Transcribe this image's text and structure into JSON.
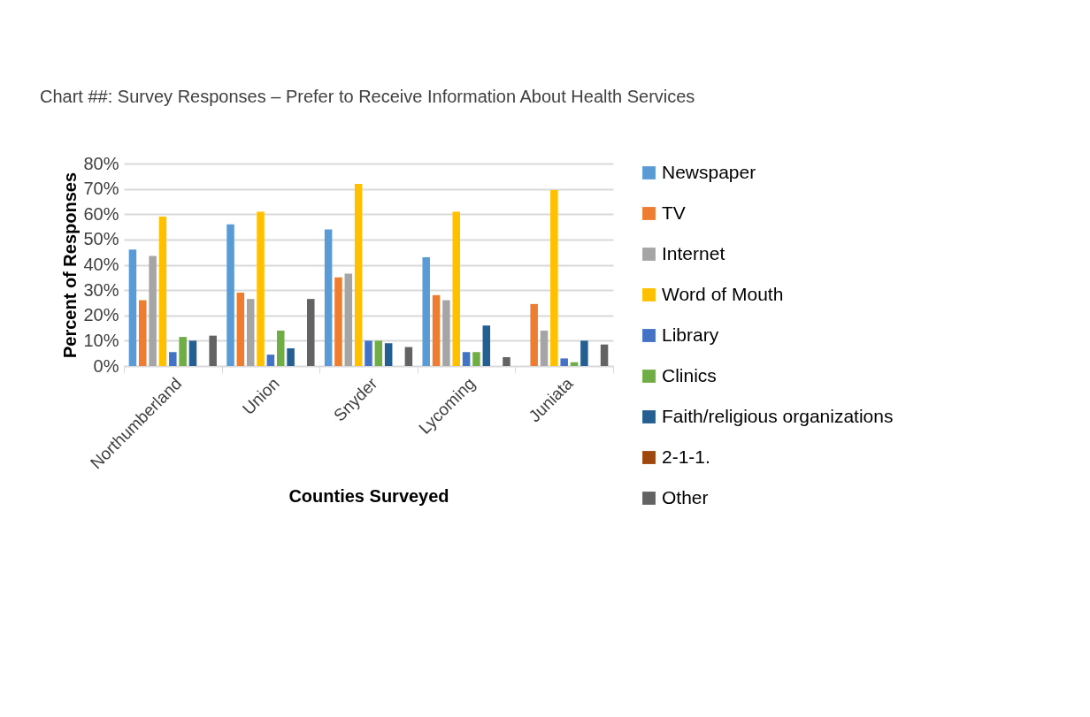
{
  "chart_data": {
    "type": "bar",
    "title": "Chart ##: Survey Responses – Prefer to Receive Information About Health Services",
    "xlabel": "Counties Surveyed",
    "ylabel": "Percent of Responses",
    "categories": [
      "Northumberland",
      "Union",
      "Snyder",
      "Lycoming",
      "Juniata"
    ],
    "series": [
      {
        "name": "Newspaper",
        "color": "#5b9bd5",
        "values": [
          46,
          56,
          54,
          43,
          0
        ]
      },
      {
        "name": "TV",
        "color": "#ed7d31",
        "values": [
          26,
          29,
          35,
          28,
          24.5
        ]
      },
      {
        "name": "Internet",
        "color": "#a5a5a5",
        "values": [
          43.5,
          26.5,
          36.5,
          26,
          14
        ]
      },
      {
        "name": "Word of Mouth",
        "color": "#ffc000",
        "values": [
          59,
          61,
          72,
          61,
          69.5
        ]
      },
      {
        "name": "Library",
        "color": "#4472c4",
        "values": [
          5.5,
          4.5,
          10,
          5.5,
          3
        ]
      },
      {
        "name": "Clinics",
        "color": "#70ad47",
        "values": [
          11.5,
          14,
          10,
          5.5,
          1.5
        ]
      },
      {
        "name": "Faith/religious organizations",
        "color": "#255e91",
        "values": [
          10,
          7,
          9,
          16,
          10
        ]
      },
      {
        "name": "2-1-1.",
        "color": "#9e480e",
        "values": [
          0,
          0,
          0,
          0,
          0
        ]
      },
      {
        "name": "Other",
        "color": "#636363",
        "values": [
          12,
          26.5,
          7.5,
          3.5,
          8.5
        ]
      }
    ],
    "ylim": [
      0,
      80
    ],
    "yticks": [
      {
        "value": 0,
        "label": "0%"
      },
      {
        "value": 10,
        "label": "10%"
      },
      {
        "value": 20,
        "label": "20%"
      },
      {
        "value": 30,
        "label": "30%"
      },
      {
        "value": 40,
        "label": "40%"
      },
      {
        "value": 50,
        "label": "50%"
      },
      {
        "value": 60,
        "label": "60%"
      },
      {
        "value": 70,
        "label": "70%"
      },
      {
        "value": 80,
        "label": "80%"
      }
    ],
    "grid": "y",
    "legend": "right"
  }
}
